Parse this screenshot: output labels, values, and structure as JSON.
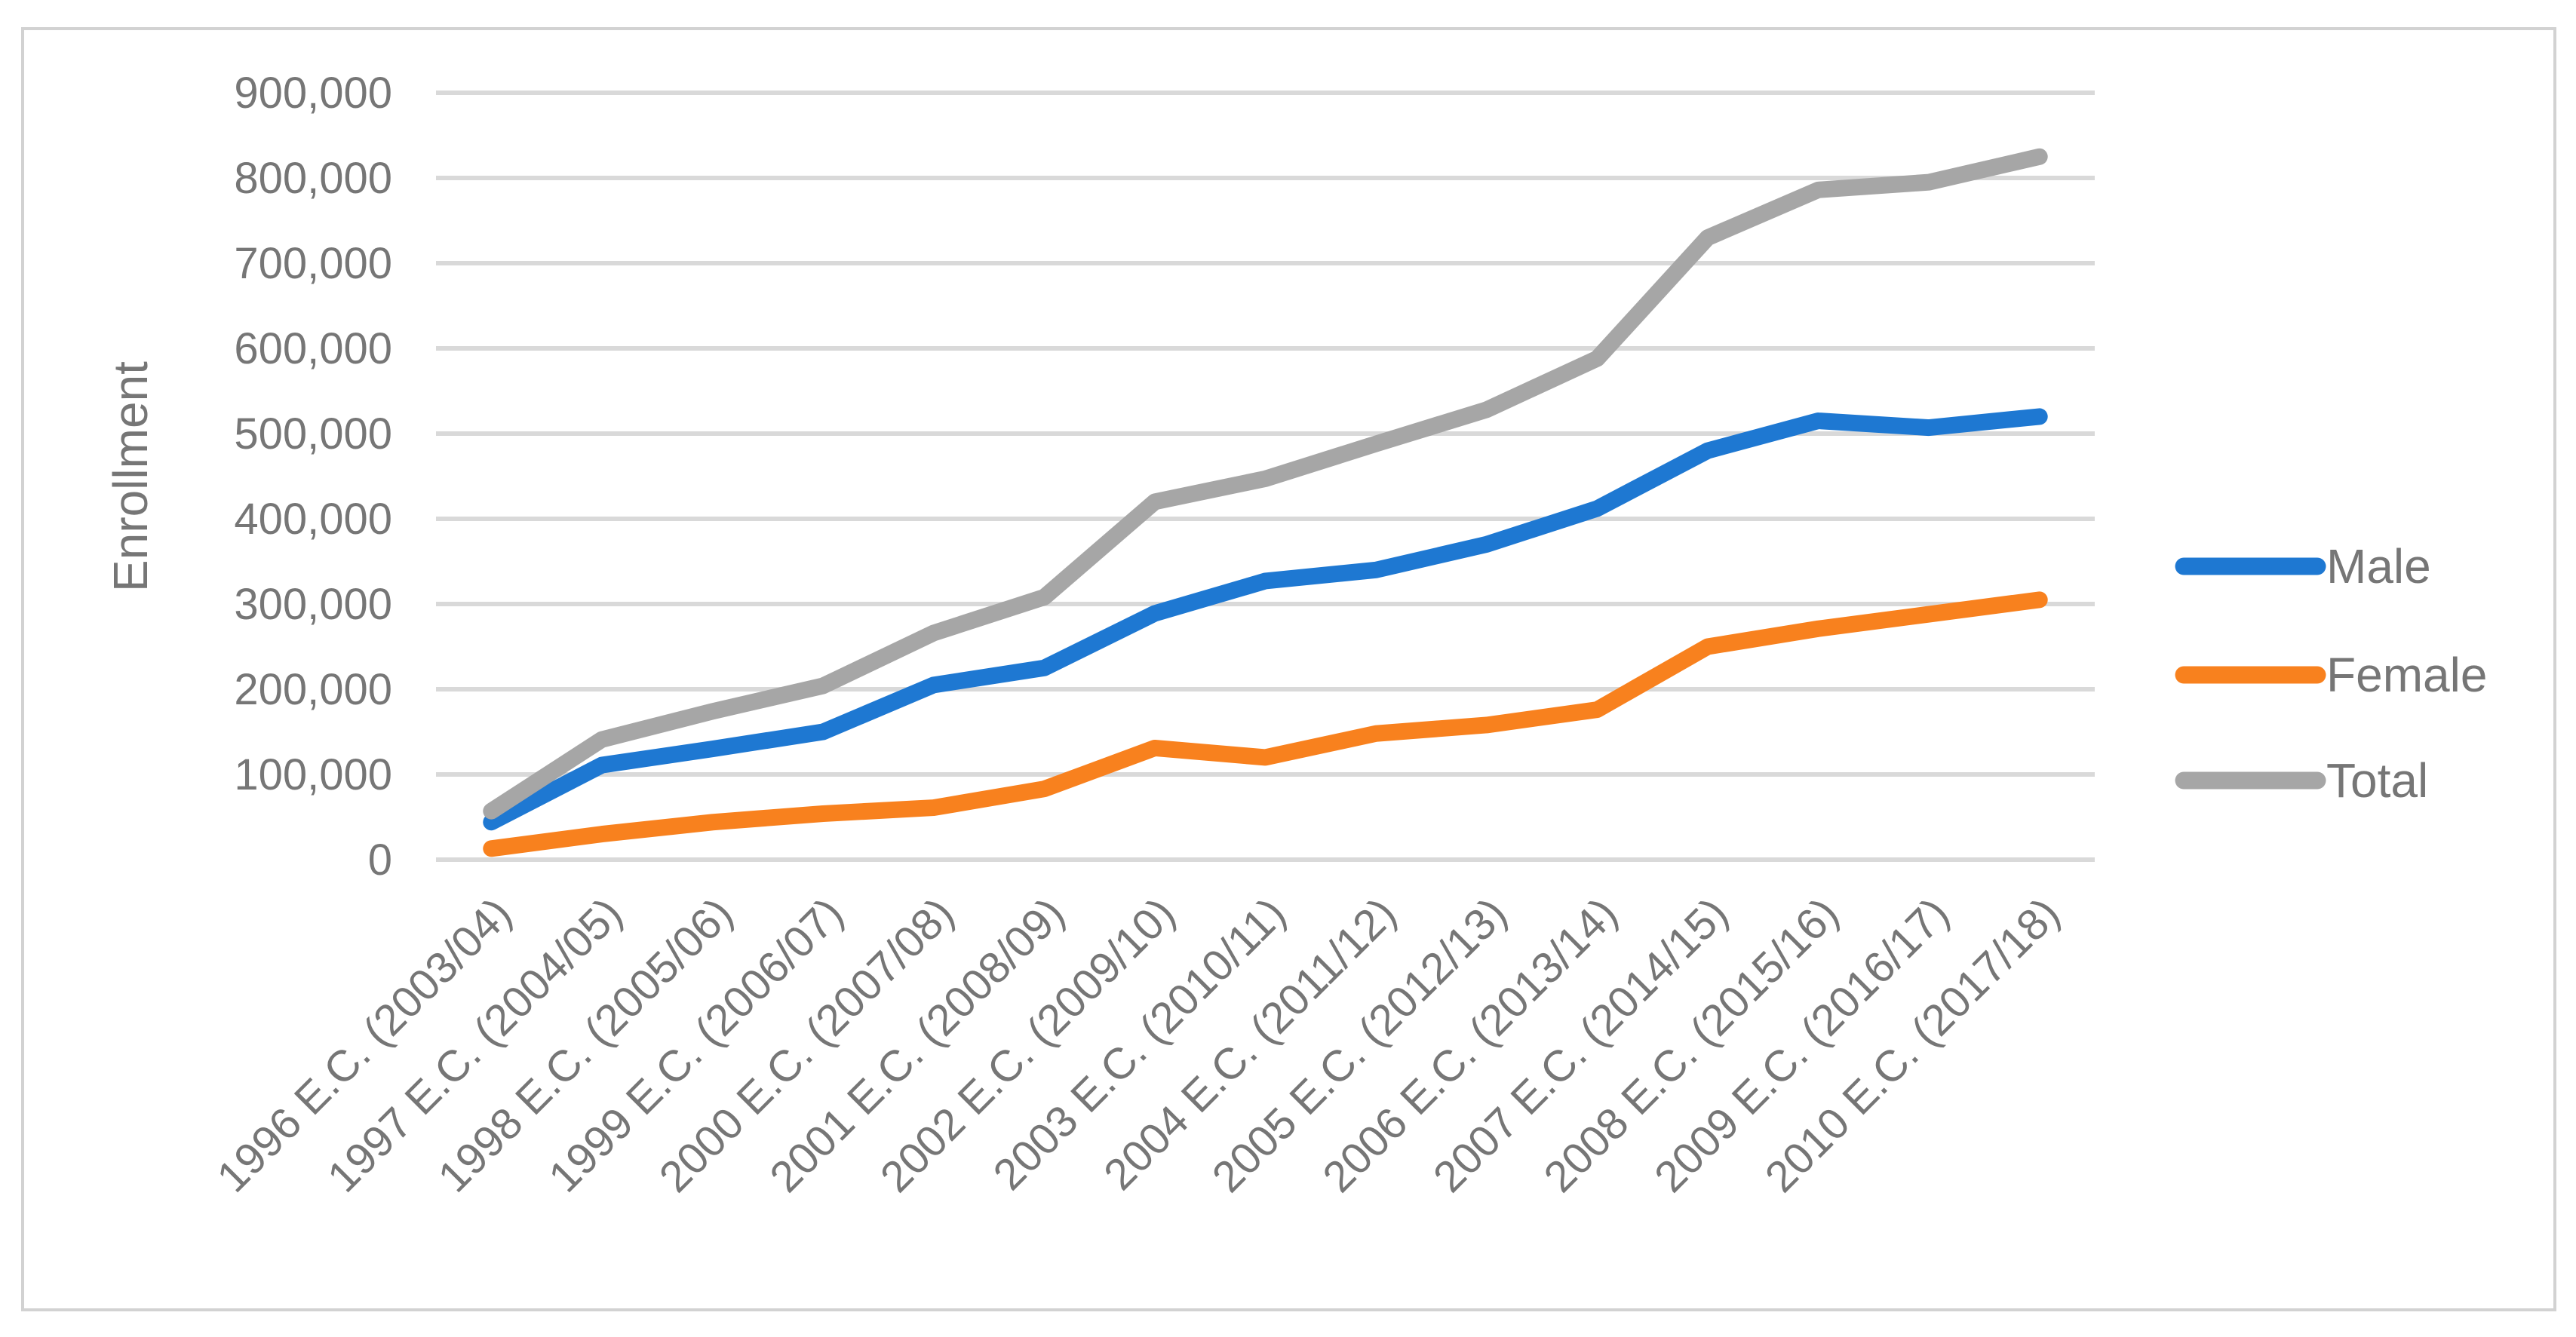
{
  "chart_data": {
    "type": "line",
    "title": "",
    "xlabel": "",
    "ylabel": "Enrollment",
    "grid": true,
    "legend_position": "right",
    "categories": [
      "1996 E.C. (2003/04)",
      "1997 E.C. (2004/05)",
      "1998 E.C. (2005/06)",
      "1999 E.C. (2006/07)",
      "2000 E.C. (2007/08)",
      "2001 E.C. (2008/09)",
      "2002 E.C. (2009/10)",
      "2003 E.C. (2010/11)",
      "2004 E.C. (2011/12)",
      "2005 E.C. (2012/13)",
      "2006 E.C. (2013/14)",
      "2007 E.C. (2014/15)",
      "2008 E.C. (2015/16)",
      "2009 E.C. (2016/17)",
      "2010 E.C. (2017/18)"
    ],
    "series": [
      {
        "name": "Male",
        "color": "#1E78D2",
        "values": [
          44000,
          111000,
          130000,
          150000,
          205000,
          225000,
          289000,
          327000,
          340000,
          370000,
          412000,
          480000,
          515000,
          507000,
          520000
        ]
      },
      {
        "name": "Female",
        "color": "#F8811E",
        "values": [
          13000,
          30000,
          44000,
          54000,
          61000,
          83000,
          131000,
          120000,
          148000,
          158000,
          176000,
          250000,
          271000,
          288000,
          305000
        ]
      },
      {
        "name": "Total",
        "color": "#A6A6A6",
        "values": [
          57000,
          141000,
          174000,
          204000,
          266000,
          308000,
          420000,
          447000,
          488000,
          528000,
          588000,
          730000,
          786000,
          795000,
          825000
        ]
      }
    ],
    "y_axis": {
      "min": 0,
      "max": 900000,
      "step": 100000,
      "tick_labels": [
        "0",
        "100,000",
        "200,000",
        "300,000",
        "400,000",
        "500,000",
        "600,000",
        "700,000",
        "800,000",
        "900,000"
      ]
    }
  },
  "styles": {
    "gridline_color": "#D9D9D9",
    "border_color": "#D2D2D2",
    "text_color": "#767676",
    "background": "#FFFFFF"
  }
}
